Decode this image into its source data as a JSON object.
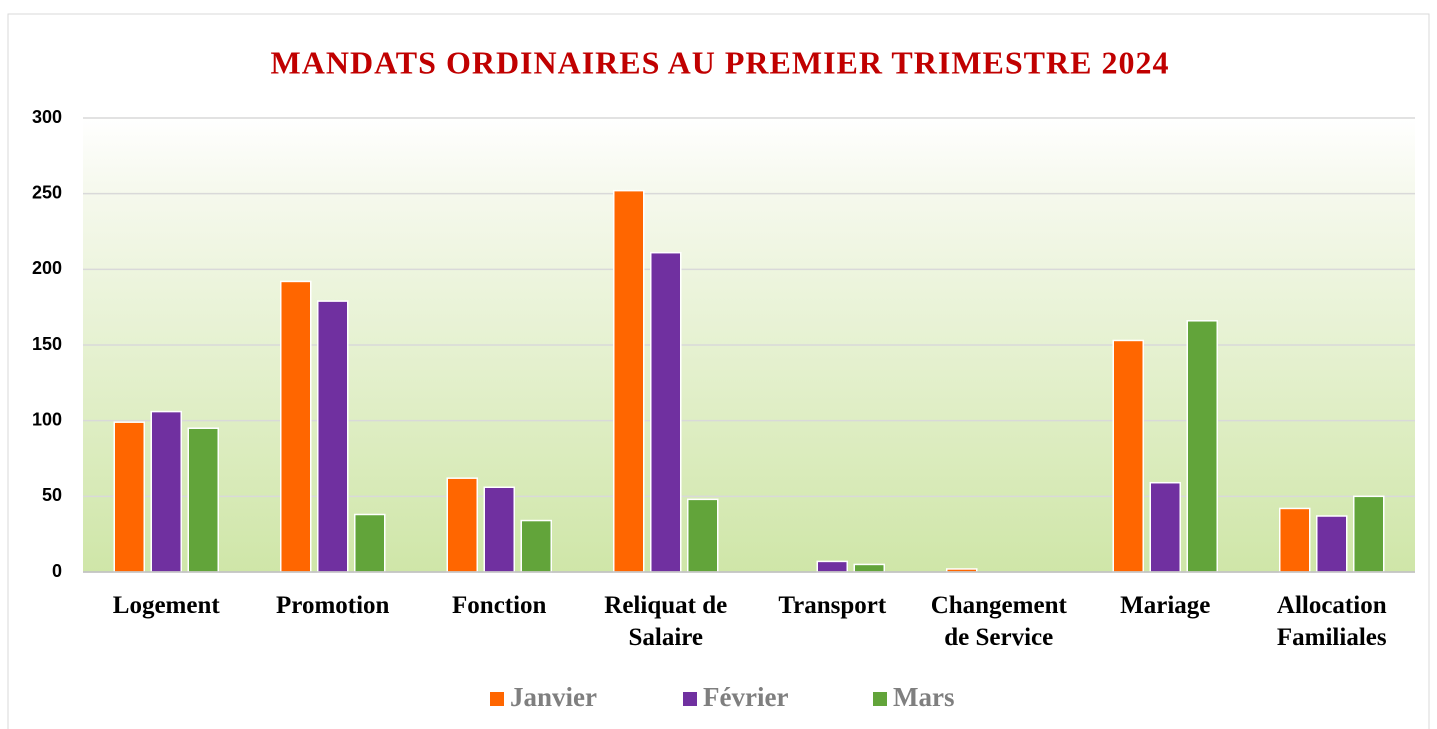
{
  "chart_data": {
    "type": "bar",
    "title": "MANDATS ORDINAIRES AU PREMIER TRIMESTRE 2024",
    "categories": [
      "Logement",
      "Promotion",
      "Fonction",
      "Reliquat de Salaire",
      "Transport",
      "Changement de Service",
      "Mariage",
      "Allocation Familiales"
    ],
    "series": [
      {
        "name": "Janvier",
        "color": "#ff6600",
        "values": [
          99,
          192,
          62,
          252,
          0,
          2,
          153,
          42
        ]
      },
      {
        "name": "Février",
        "color": "#7030a0",
        "values": [
          106,
          179,
          56,
          211,
          7,
          0,
          59,
          37
        ]
      },
      {
        "name": "Mars",
        "color": "#62a43a",
        "values": [
          95,
          38,
          34,
          48,
          5,
          0,
          166,
          50
        ]
      }
    ],
    "ylim": [
      0,
      300
    ],
    "yticks": [
      0,
      50,
      100,
      150,
      200,
      250,
      300
    ],
    "grid": true,
    "legend": "bottom"
  }
}
